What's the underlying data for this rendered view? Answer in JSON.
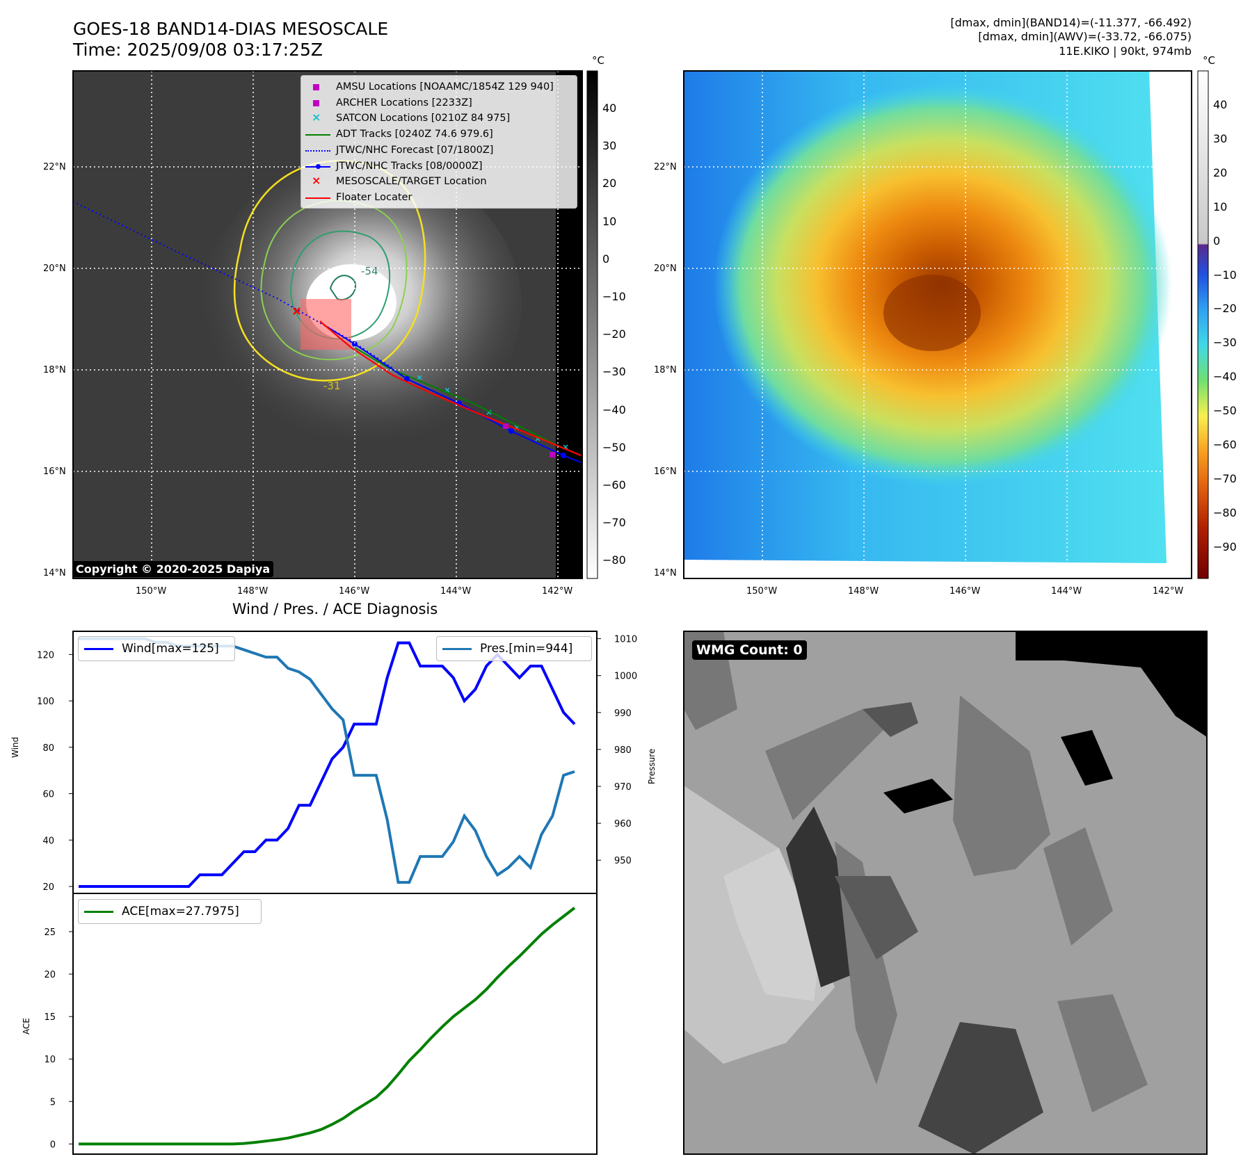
{
  "header": {
    "title_line1": "GOES-18 BAND14-DIAS MESOSCALE",
    "title_line2": "Time: 2025/09/08 03:17:25Z",
    "stats_line1": "[dmax, dmin](BAND14)=(-11.377, -66.492)",
    "stats_line2": "[dmax, dmin](AWV)=(-33.72, -66.075)",
    "stats_line3": "11E.KIKO | 90kt, 974mb"
  },
  "map": {
    "lat_labels": [
      "22°N",
      "20°N",
      "18°N",
      "16°N",
      "14°N"
    ],
    "lon_labels": [
      "150°W",
      "148°W",
      "146°W",
      "144°W",
      "142°W"
    ],
    "copyright": "Copyright © 2020-2025 Dapiya",
    "contour_labels": [
      "-54",
      "-31"
    ],
    "legend": [
      {
        "label": "AMSU Locations [NOAAMC/1854Z 129 940]",
        "color": "#c000c0",
        "marker": "square"
      },
      {
        "label": "ARCHER Locations [2233Z]",
        "color": "#c000c0",
        "marker": "square"
      },
      {
        "label": "SATCON Locations [0210Z 84 975]",
        "color": "#17becf",
        "marker": "x"
      },
      {
        "label": "ADT Tracks [0240Z 74.6 979.6]",
        "color": "#008000",
        "marker": "line"
      },
      {
        "label": "JTWC/NHC Forecast [07/1800Z]",
        "color": "#0000ff",
        "marker": "dotted"
      },
      {
        "label": "JTWC/NHC Tracks [08/0000Z]",
        "color": "#0000ff",
        "marker": "line-dot"
      },
      {
        "label": "MESOSCALE/TARGET Location",
        "color": "#ff0000",
        "marker": "x"
      },
      {
        "label": "Floater Locater",
        "color": "#ff0000",
        "marker": "line"
      }
    ]
  },
  "colorbars": {
    "unit": "°C",
    "gray_ticks": [
      "40",
      "30",
      "20",
      "10",
      "0",
      "−10",
      "−20",
      "−30",
      "−40",
      "−50",
      "−60",
      "−70",
      "−80"
    ],
    "color_ticks": [
      "40",
      "30",
      "20",
      "10",
      "0",
      "−10",
      "−20",
      "−30",
      "−40",
      "−50",
      "−60",
      "−70",
      "−80",
      "−90"
    ]
  },
  "wmg": {
    "label": "WMG Count: 0"
  },
  "chart_data": [
    {
      "type": "line",
      "title": "Wind / Pres. / ACE Diagnosis",
      "ylabel": "Wind",
      "y2label": "Pressure",
      "ylim": [
        17,
        130
      ],
      "y2lim": [
        941,
        1012
      ],
      "yticks": [
        20,
        40,
        60,
        80,
        100,
        120
      ],
      "y2ticks": [
        950,
        960,
        970,
        980,
        990,
        1000,
        1010
      ],
      "series": [
        {
          "name": "Wind[max=125]",
          "color": "#0000ff",
          "values": [
            20,
            20,
            20,
            20,
            20,
            20,
            20,
            20,
            20,
            20,
            20,
            25,
            25,
            25,
            30,
            35,
            35,
            40,
            40,
            45,
            55,
            55,
            65,
            75,
            80,
            90,
            90,
            90,
            110,
            125,
            125,
            115,
            115,
            115,
            110,
            100,
            105,
            115,
            120,
            115,
            110,
            115,
            115,
            105,
            95,
            90
          ]
        },
        {
          "name": "Pres.[min=944]",
          "color": "#1f77b4",
          "values": [
            1010,
            1010,
            1010,
            1010,
            1010,
            1010,
            1010,
            1009,
            1009,
            1008,
            1008,
            1008,
            1008,
            1008,
            1008,
            1007,
            1006,
            1005,
            1005,
            1002,
            1001,
            999,
            995,
            991,
            988,
            973,
            973,
            973,
            961,
            944,
            944,
            951,
            951,
            951,
            955,
            962,
            958,
            951,
            946,
            948,
            951,
            948,
            957,
            962,
            973,
            974
          ]
        }
      ]
    },
    {
      "type": "line",
      "ylabel": "ACE",
      "ylim": [
        -1.2,
        29.5
      ],
      "yticks": [
        0,
        5,
        10,
        15,
        20,
        25
      ],
      "series": [
        {
          "name": "ACE[max=27.7975]",
          "color": "#008000",
          "values": [
            0,
            0,
            0,
            0,
            0,
            0,
            0,
            0,
            0,
            0,
            0,
            0,
            0,
            0,
            0,
            0.06,
            0.18,
            0.34,
            0.5,
            0.7,
            1.0,
            1.3,
            1.7,
            2.3,
            3.0,
            3.9,
            4.7,
            5.5,
            6.7,
            8.2,
            9.8,
            11.1,
            12.5,
            13.8,
            15.0,
            16.0,
            17.0,
            18.2,
            19.6,
            20.9,
            22.1,
            23.4,
            24.7,
            25.8,
            26.8,
            27.8
          ]
        }
      ]
    }
  ]
}
